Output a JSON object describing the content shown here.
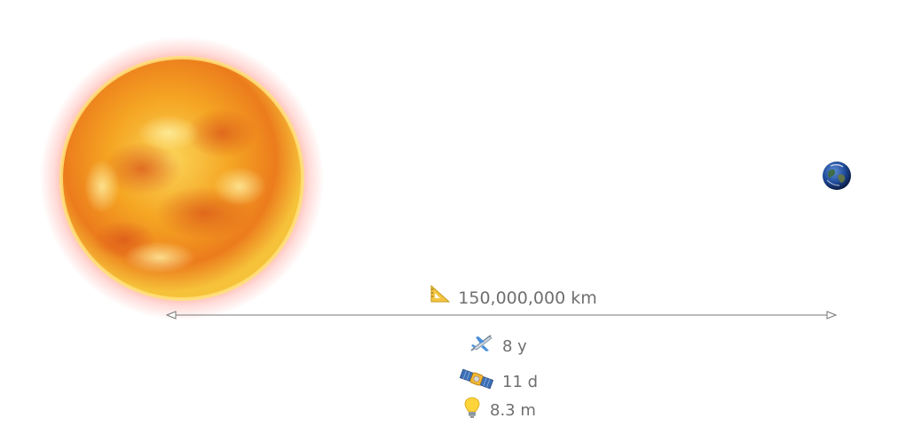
{
  "distance": {
    "icon": "triangular-ruler-icon",
    "label": "150,000,000 km"
  },
  "travel_times": [
    {
      "icon": "airplane-icon",
      "label": "8 y"
    },
    {
      "icon": "satellite-icon",
      "label": "11 d"
    },
    {
      "icon": "light-bulb-icon",
      "label": "8.3 m"
    }
  ],
  "colors": {
    "sun_core": "#f7c43a",
    "sun_edge": "#e2561b",
    "earth_ocean": "#1f4b9a",
    "earth_land": "#3c6b3a",
    "text": "#6f6f6f",
    "arrow": "#777777"
  }
}
